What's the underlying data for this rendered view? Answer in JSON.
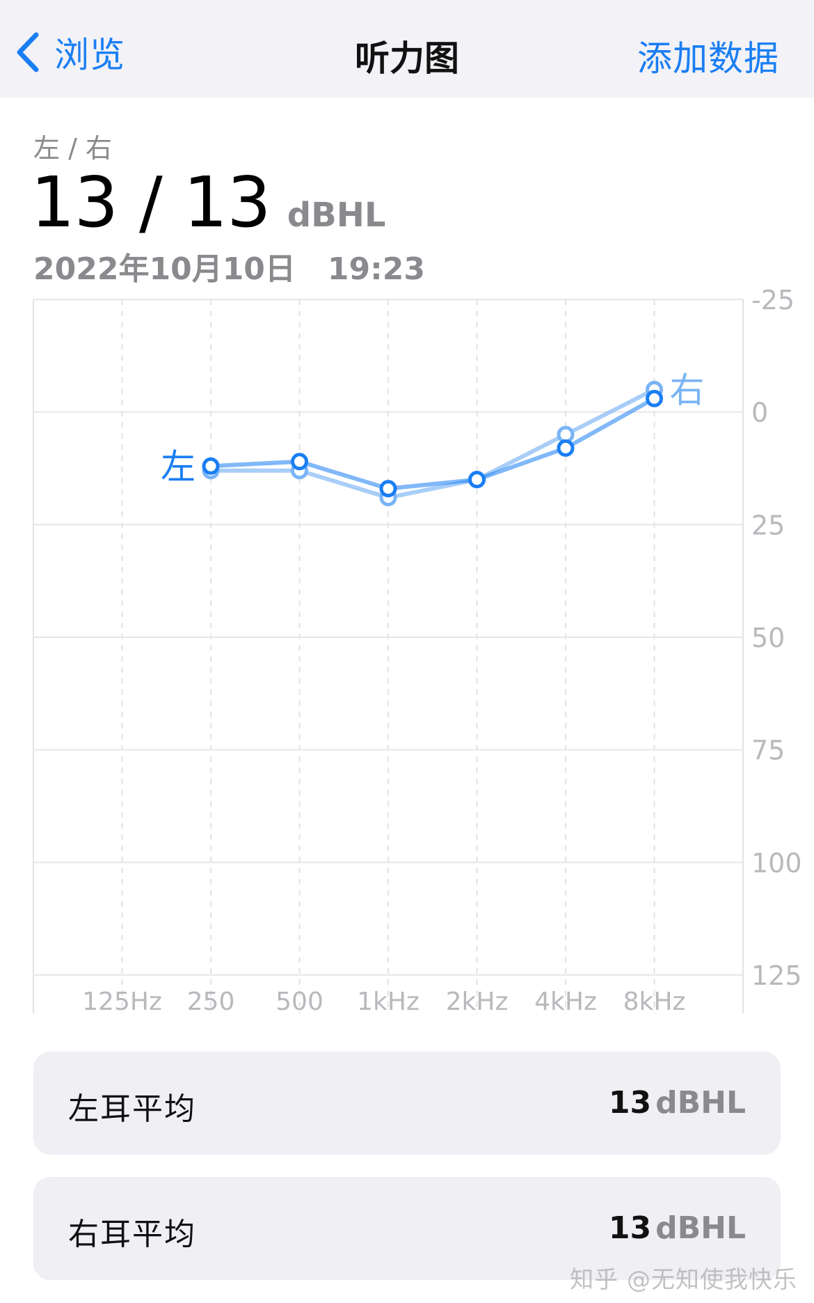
{
  "nav": {
    "back_label": "浏览",
    "title": "听力图",
    "action_label": "添加数据"
  },
  "summary": {
    "label": "左 / 右",
    "value": "13 / 13",
    "unit": "dBHL",
    "date": "2022年10月10日",
    "time": "19:23"
  },
  "chart_data": {
    "type": "line",
    "categories": [
      "125Hz",
      "250",
      "500",
      "1kHz",
      "2kHz",
      "4kHz",
      "8kHz"
    ],
    "y_ticks": [
      "-25",
      "0",
      "25",
      "50",
      "75",
      "100",
      "125"
    ],
    "ylim": [
      -25,
      125
    ],
    "y_inverted": true,
    "grid": true,
    "series": [
      {
        "name": "左",
        "color": "#1a7ef3",
        "x": [
          "250",
          "500",
          "1kHz",
          "2kHz",
          "4kHz",
          "8kHz"
        ],
        "values": [
          12,
          11,
          17,
          15,
          8,
          -3
        ]
      },
      {
        "name": "右",
        "color": "#79b4f5",
        "x": [
          "250",
          "500",
          "1kHz",
          "2kHz",
          "4kHz",
          "8kHz"
        ],
        "values": [
          13,
          13,
          19,
          15,
          5,
          -5
        ]
      }
    ]
  },
  "cards": [
    {
      "label": "左耳平均",
      "value": "13",
      "unit": "dBHL"
    },
    {
      "label": "右耳平均",
      "value": "13",
      "unit": "dBHL"
    }
  ],
  "watermark": "知乎 @无知使我快乐"
}
